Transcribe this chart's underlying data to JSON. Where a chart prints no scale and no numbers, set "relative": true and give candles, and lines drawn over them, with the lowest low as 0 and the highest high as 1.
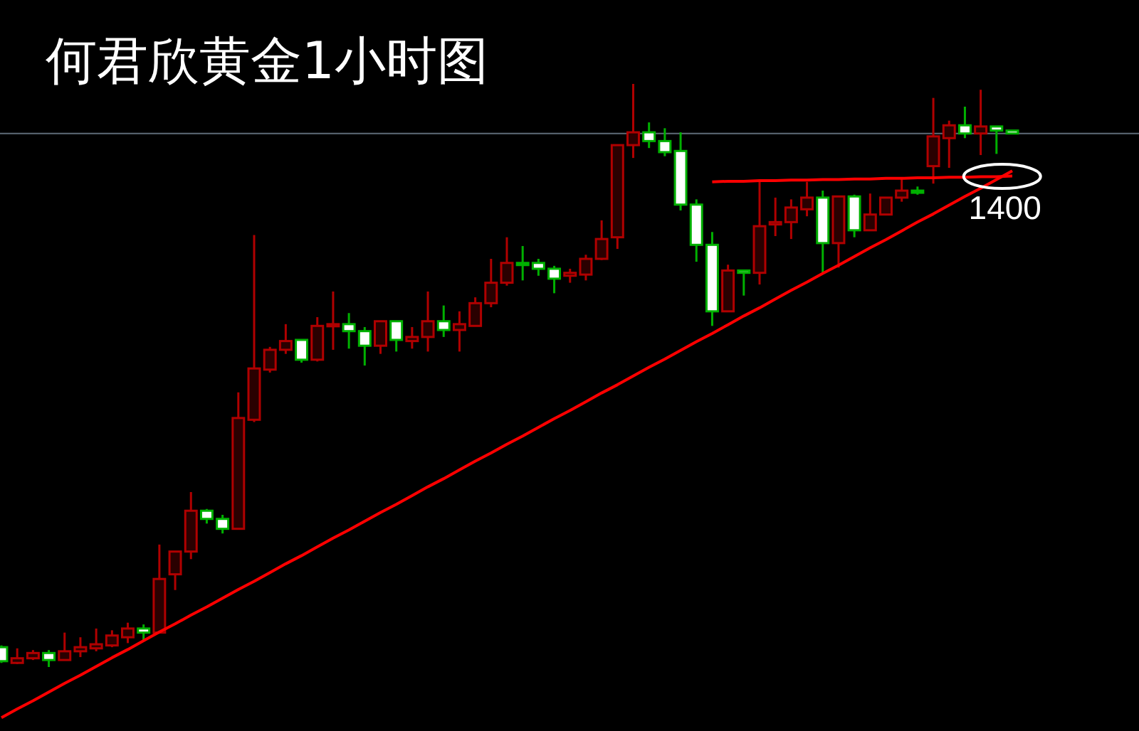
{
  "chart_data": {
    "type": "candlestick",
    "title": "何君欣黄金1小时图",
    "relative": true,
    "categories": [
      null,
      null,
      null,
      null,
      null,
      null,
      null,
      null,
      null,
      null,
      null,
      null,
      null,
      null,
      null,
      null,
      null,
      null,
      null,
      null,
      null,
      null,
      null,
      null,
      null,
      null,
      null,
      null,
      null,
      null,
      null,
      null,
      null,
      null,
      null,
      null,
      null,
      null,
      null,
      null,
      null,
      null,
      null,
      null,
      null,
      null,
      null,
      null,
      null,
      null,
      null,
      null,
      null,
      null,
      null,
      null,
      null,
      null,
      null,
      null,
      null,
      null,
      null,
      null,
      null
    ],
    "ohlc": [
      [
        0.034,
        0.037,
        0.007,
        0.01
      ],
      [
        0.007,
        0.032,
        0.005,
        0.015
      ],
      [
        0.015,
        0.029,
        0.012,
        0.024
      ],
      [
        0.024,
        0.029,
        0.0,
        0.012
      ],
      [
        0.012,
        0.059,
        0.012,
        0.027
      ],
      [
        0.027,
        0.051,
        0.017,
        0.034
      ],
      [
        0.032,
        0.066,
        0.027,
        0.039
      ],
      [
        0.037,
        0.063,
        0.034,
        0.054
      ],
      [
        0.051,
        0.076,
        0.041,
        0.066
      ],
      [
        0.066,
        0.073,
        0.046,
        0.059
      ],
      [
        0.059,
        0.21,
        0.059,
        0.151
      ],
      [
        0.159,
        0.198,
        0.132,
        0.198
      ],
      [
        0.198,
        0.3,
        0.185,
        0.268
      ],
      [
        0.268,
        0.271,
        0.246,
        0.254
      ],
      [
        0.254,
        0.261,
        0.229,
        0.237
      ],
      [
        0.237,
        0.471,
        0.237,
        0.427
      ],
      [
        0.424,
        0.741,
        0.42,
        0.512
      ],
      [
        0.51,
        0.549,
        0.505,
        0.544
      ],
      [
        0.544,
        0.588,
        0.537,
        0.559
      ],
      [
        0.561,
        0.561,
        0.522,
        0.527
      ],
      [
        0.527,
        0.6,
        0.524,
        0.585
      ],
      [
        0.585,
        0.644,
        0.544,
        0.588
      ],
      [
        0.588,
        0.607,
        0.546,
        0.576
      ],
      [
        0.576,
        0.583,
        0.517,
        0.551
      ],
      [
        0.551,
        0.593,
        0.537,
        0.593
      ],
      [
        0.593,
        0.593,
        0.541,
        0.561
      ],
      [
        0.559,
        0.583,
        0.546,
        0.566
      ],
      [
        0.566,
        0.644,
        0.541,
        0.593
      ],
      [
        0.593,
        0.62,
        0.566,
        0.578
      ],
      [
        0.578,
        0.61,
        0.541,
        0.588
      ],
      [
        0.585,
        0.634,
        0.585,
        0.624
      ],
      [
        0.624,
        0.7,
        0.617,
        0.659
      ],
      [
        0.659,
        0.737,
        0.654,
        0.693
      ],
      [
        0.693,
        0.722,
        0.663,
        0.693
      ],
      [
        0.693,
        0.7,
        0.671,
        0.683
      ],
      [
        0.683,
        0.688,
        0.641,
        0.666
      ],
      [
        0.671,
        0.683,
        0.659,
        0.676
      ],
      [
        0.673,
        0.707,
        0.663,
        0.7
      ],
      [
        0.7,
        0.766,
        0.698,
        0.734
      ],
      [
        0.737,
        0.895,
        0.717,
        0.895
      ],
      [
        0.895,
        1.0,
        0.873,
        0.917
      ],
      [
        0.917,
        0.934,
        0.89,
        0.902
      ],
      [
        0.902,
        0.924,
        0.876,
        0.883
      ],
      [
        0.885,
        0.917,
        0.783,
        0.793
      ],
      [
        0.793,
        0.802,
        0.695,
        0.724
      ],
      [
        0.724,
        0.746,
        0.585,
        0.61
      ],
      [
        0.61,
        0.69,
        0.61,
        0.68
      ],
      [
        0.68,
        0.68,
        0.637,
        0.676
      ],
      [
        0.676,
        0.832,
        0.656,
        0.756
      ],
      [
        0.759,
        0.805,
        0.739,
        0.763
      ],
      [
        0.763,
        0.802,
        0.734,
        0.788
      ],
      [
        0.785,
        0.832,
        0.773,
        0.805
      ],
      [
        0.805,
        0.817,
        0.676,
        0.727
      ],
      [
        0.727,
        0.807,
        0.685,
        0.807
      ],
      [
        0.807,
        0.81,
        0.737,
        0.749
      ],
      [
        0.749,
        0.812,
        0.749,
        0.776
      ],
      [
        0.776,
        0.805,
        0.776,
        0.805
      ],
      [
        0.805,
        0.837,
        0.798,
        0.817
      ],
      [
        0.817,
        0.824,
        0.81,
        0.817
      ],
      [
        0.859,
        0.976,
        0.829,
        0.91
      ],
      [
        0.907,
        0.937,
        0.856,
        0.929
      ],
      [
        0.929,
        0.961,
        0.907,
        0.915
      ],
      [
        0.915,
        0.99,
        0.878,
        0.927
      ],
      [
        0.927,
        0.927,
        0.88,
        0.92
      ],
      [
        0.92,
        0.92,
        0.915,
        0.915
      ]
    ],
    "colors": [
      "#00b000",
      "#b00000",
      "#b00000",
      "#00b000",
      "#b00000",
      "#b00000",
      "#b00000",
      "#b00000",
      "#b00000",
      "#00b000",
      "#b00000",
      "#b00000",
      "#b00000",
      "#00b000",
      "#00b000",
      "#b00000",
      "#b00000",
      "#b00000",
      "#b00000",
      "#00b000",
      "#b00000",
      "#b00000",
      "#00b000",
      "#00b000",
      "#b00000",
      "#00b000",
      "#b00000",
      "#b00000",
      "#00b000",
      "#b00000",
      "#b00000",
      "#b00000",
      "#b00000",
      "#00b000",
      "#00b000",
      "#00b000",
      "#b00000",
      "#b00000",
      "#b00000",
      "#b00000",
      "#b00000",
      "#00b000",
      "#00b000",
      "#00b000",
      "#00b000",
      "#00b000",
      "#b00000",
      "#00b000",
      "#b00000",
      "#b00000",
      "#b00000",
      "#b00000",
      "#00b000",
      "#b00000",
      "#00b000",
      "#b00000",
      "#b00000",
      "#b00000",
      "#00b000",
      "#b00000",
      "#b00000",
      "#00b000",
      "#b00000",
      "#00b000",
      "#00b000"
    ],
    "series": [
      {
        "type": "line",
        "color": "#ff0000",
        "values": [
          -0.087,
          -0.072,
          -0.058,
          -0.043,
          -0.028,
          -0.014,
          0.001,
          0.016,
          0.03,
          0.045,
          0.06,
          0.074,
          0.089,
          0.103,
          0.118,
          0.133,
          0.147,
          0.162,
          0.177,
          0.191,
          0.206,
          0.221,
          0.235,
          0.25,
          0.265,
          0.279,
          0.294,
          0.309,
          0.323,
          0.338,
          0.353,
          0.367,
          0.382,
          0.396,
          0.411,
          0.426,
          0.44,
          0.455,
          0.47,
          0.484,
          0.499,
          0.514,
          0.528,
          0.543,
          0.558,
          0.572,
          0.587,
          0.602,
          0.616,
          0.631,
          0.646,
          0.66,
          0.675,
          0.689,
          0.704,
          0.719,
          0.733,
          0.748,
          0.763,
          0.777,
          0.792,
          0.807,
          0.821,
          0.836,
          0.851
        ]
      },
      {
        "type": "line",
        "color": "#ff0000",
        "values": [
          null,
          null,
          null,
          null,
          null,
          null,
          null,
          null,
          null,
          null,
          null,
          null,
          null,
          null,
          null,
          null,
          null,
          null,
          null,
          null,
          null,
          null,
          null,
          null,
          null,
          null,
          null,
          null,
          null,
          null,
          null,
          null,
          null,
          null,
          null,
          null,
          null,
          null,
          null,
          null,
          null,
          null,
          null,
          null,
          null,
          0.832,
          0.833,
          0.833,
          0.834,
          0.834,
          0.835,
          0.835,
          0.836,
          0.836,
          0.837,
          0.837,
          0.838,
          0.838,
          0.839,
          0.839,
          0.84,
          0.84,
          0.841,
          0.841,
          0.842
        ]
      }
    ],
    "ref_lines": [
      {
        "axis": "y",
        "value": 0.915,
        "color": "#5f6b78"
      }
    ],
    "annotations": [
      "1400"
    ]
  }
}
